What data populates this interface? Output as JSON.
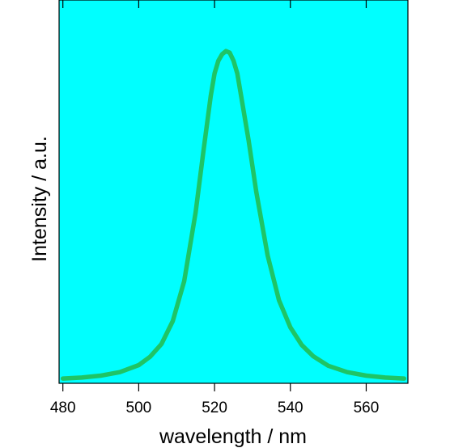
{
  "chart_data": {
    "type": "line",
    "xlabel": "wavelength / nm",
    "ylabel": "Intensity / a.u.",
    "xlim": [
      479,
      571
    ],
    "ylim": [
      0,
      1.2
    ],
    "xticks": [
      480,
      500,
      520,
      540,
      560
    ],
    "yticks_shown": false,
    "grid": false,
    "colors": {
      "plot_background": "#00ffff",
      "line": "#1fc465",
      "axis": "#000000"
    },
    "series": [
      {
        "x": [
          480,
          485,
          490,
          495,
          500,
          503,
          506,
          509,
          512,
          515,
          517,
          519,
          520,
          521,
          522,
          523,
          524,
          525,
          526,
          527,
          529,
          531,
          534,
          537,
          540,
          543,
          546,
          550,
          555,
          560,
          565,
          570
        ],
        "y": [
          0.015,
          0.018,
          0.024,
          0.035,
          0.057,
          0.083,
          0.123,
          0.195,
          0.32,
          0.535,
          0.72,
          0.9,
          0.97,
          1.01,
          1.03,
          1.04,
          1.035,
          1.01,
          0.97,
          0.9,
          0.76,
          0.6,
          0.4,
          0.26,
          0.175,
          0.12,
          0.085,
          0.055,
          0.035,
          0.024,
          0.018,
          0.015
        ]
      }
    ]
  }
}
